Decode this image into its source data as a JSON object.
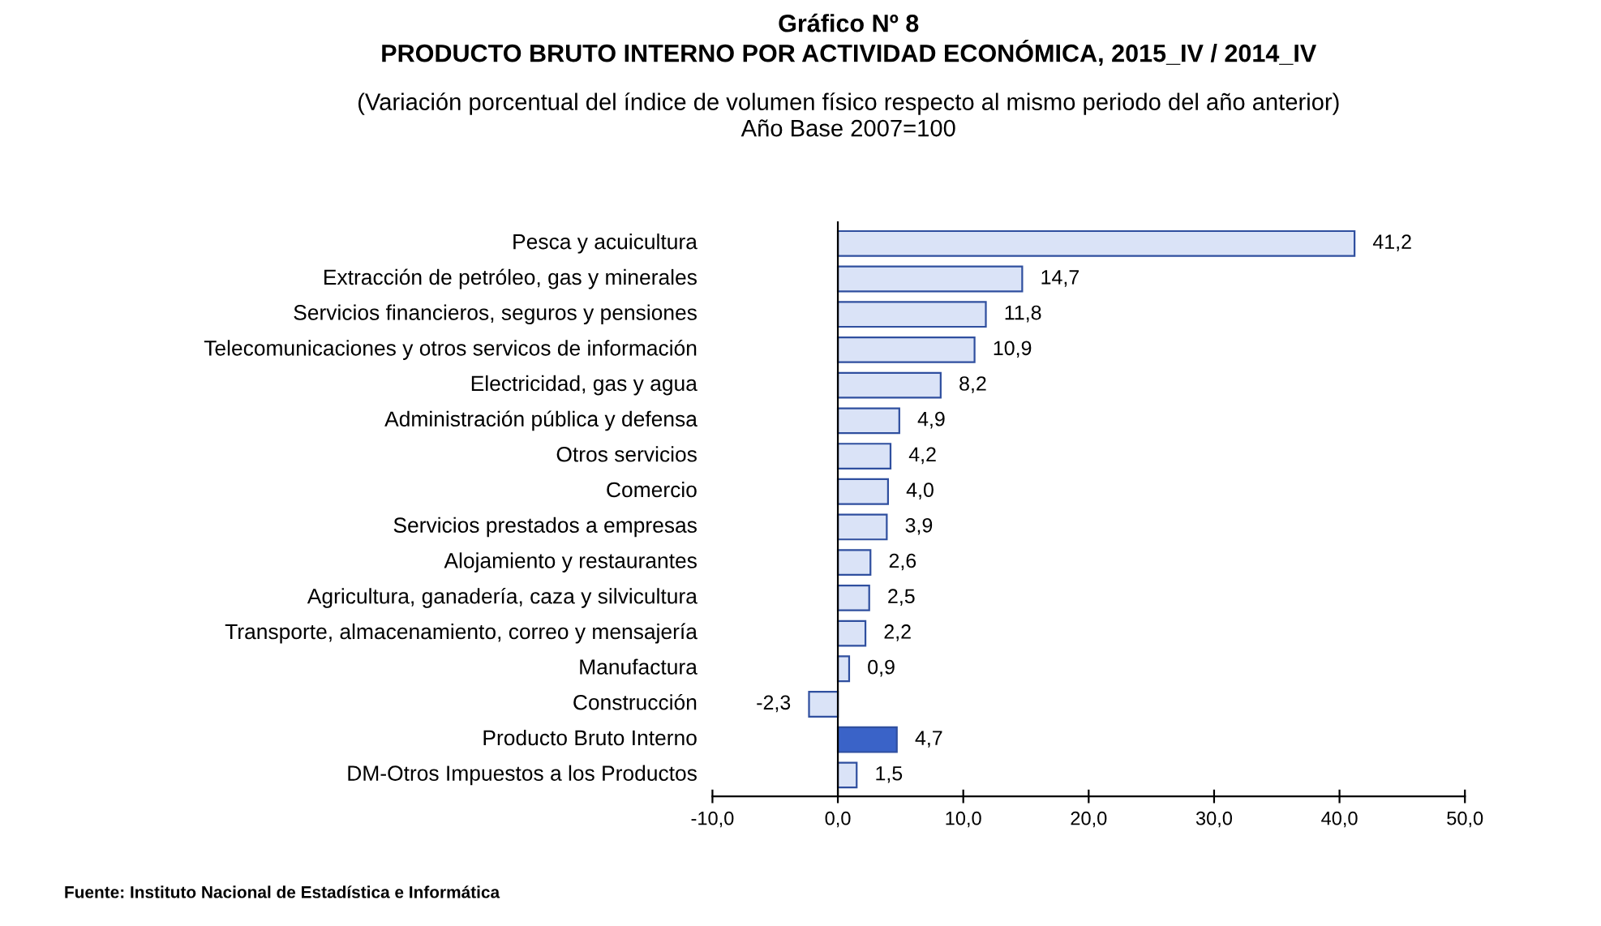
{
  "chart_data": {
    "type": "bar",
    "orientation": "horizontal",
    "title": "Gráfico Nº 8\nPRODUCTO BRUTO INTERNO POR ACTIVIDAD ECONÓMICA, 2015_IV / 2014_IV",
    "subtitle": "(Variación porcentual del índice de volumen físico respecto al mismo periodo del año anterior)\nAño Base 2007=100",
    "categories": [
      "Pesca y acuicultura",
      "Extracción de petróleo, gas y minerales",
      "Servicios financieros, seguros y pensiones",
      "Telecomunicaciones y otros servicos de información",
      "Electricidad, gas y agua",
      "Administración pública y defensa",
      "Otros servicios",
      "Comercio",
      "Servicios prestados a empresas",
      "Alojamiento y restaurantes",
      "Agricultura, ganadería, caza y silvicultura",
      "Transporte, almacenamiento, correo y mensajería",
      "Manufactura",
      "Construcción",
      "Producto Bruto Interno",
      "DM-Otros Impuestos a los Productos"
    ],
    "values": [
      41.2,
      14.7,
      11.8,
      10.9,
      8.2,
      4.9,
      4.2,
      4.0,
      3.9,
      2.6,
      2.5,
      2.2,
      0.9,
      -2.3,
      4.7,
      1.5
    ],
    "value_labels": [
      "41,2",
      "14,7",
      "11,8",
      "10,9",
      "8,2",
      "4,9",
      "4,2",
      "4,0",
      "3,9",
      "2,6",
      "2,5",
      "2,2",
      "0,9",
      "-2,3",
      "4,7",
      "1,5"
    ],
    "colors": [
      "#dae3f7",
      "#dae3f7",
      "#dae3f7",
      "#dae3f7",
      "#dae3f7",
      "#dae3f7",
      "#dae3f7",
      "#dae3f7",
      "#dae3f7",
      "#dae3f7",
      "#dae3f7",
      "#dae3f7",
      "#dae3f7",
      "#dae3f7",
      "#3a63c8",
      "#dae3f7"
    ],
    "xlim": [
      -10,
      50
    ],
    "xticks": [
      {
        "value": -10,
        "label": "-10,0"
      },
      {
        "value": 0,
        "label": "0,0"
      },
      {
        "value": 10,
        "label": "10,0"
      },
      {
        "value": 20,
        "label": "20,0"
      },
      {
        "value": 30,
        "label": "30,0"
      },
      {
        "value": 40,
        "label": "40,0"
      },
      {
        "value": 50,
        "label": "50,0"
      }
    ],
    "annotations": [
      "Fuente: Instituto Nacional de Estadística e Informática"
    ]
  }
}
